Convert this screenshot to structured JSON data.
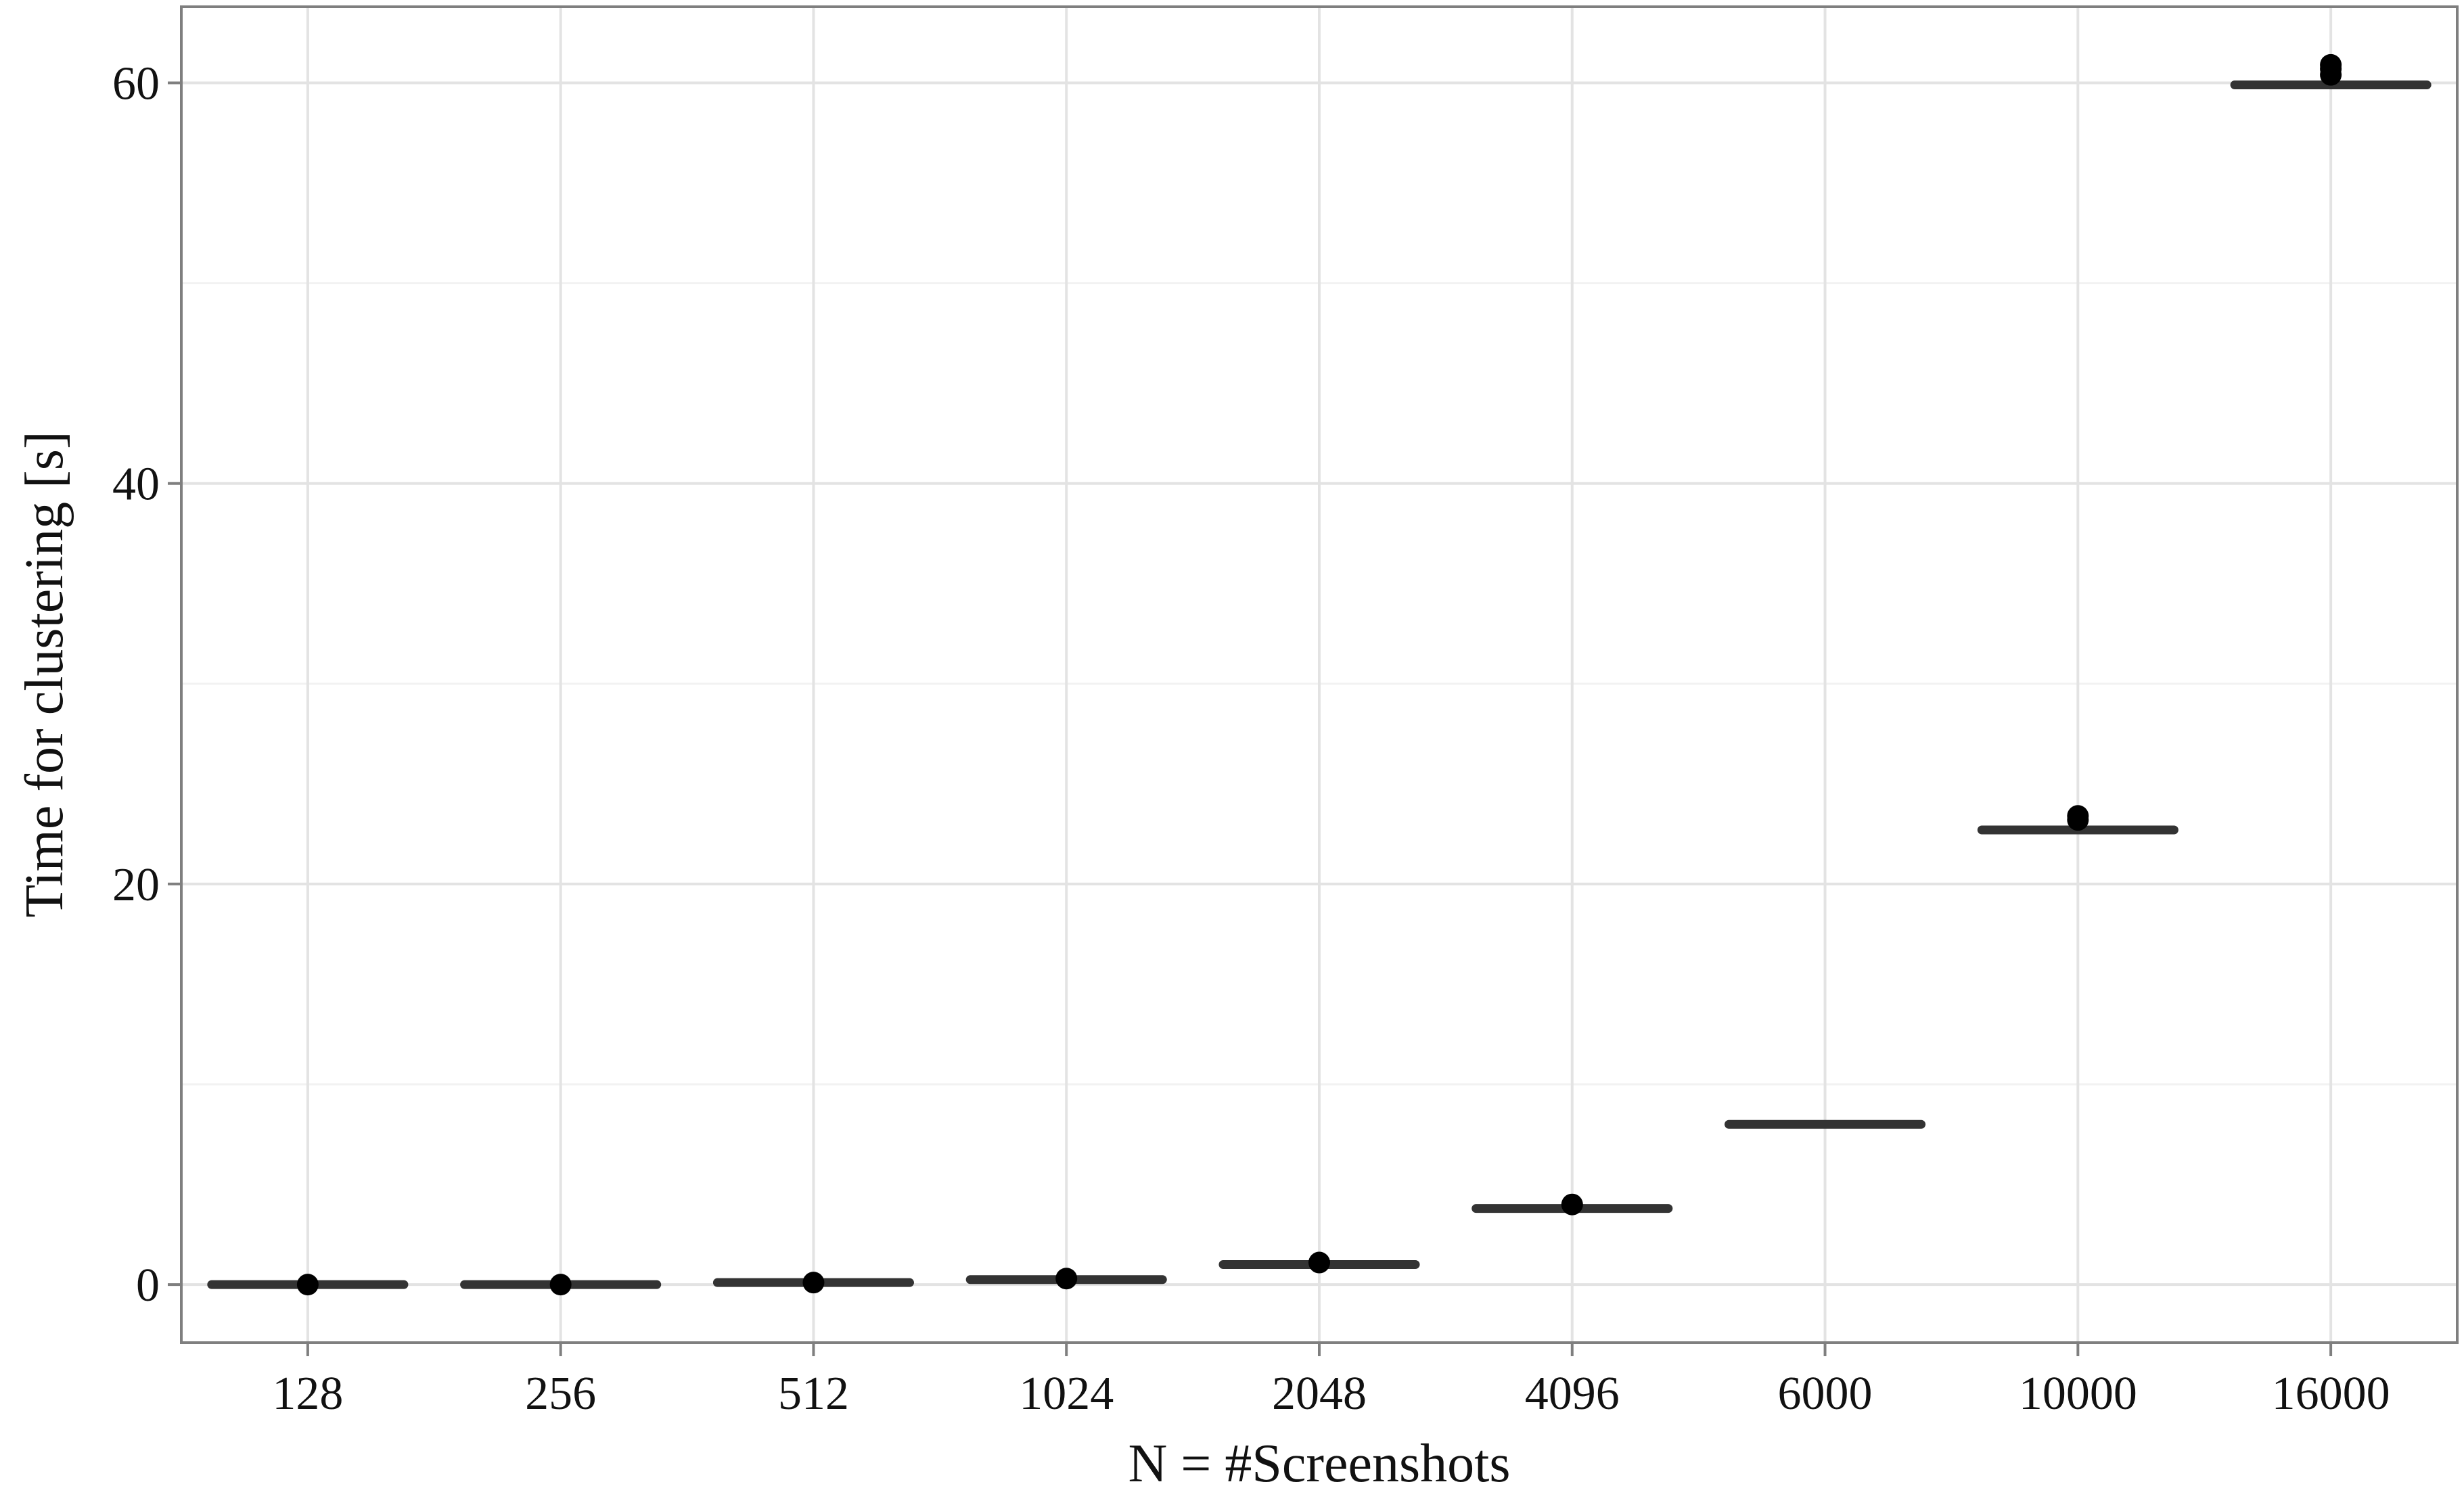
{
  "chart_data": {
    "type": "boxplot",
    "title": "",
    "xlabel": "N = #Screenshots",
    "ylabel": "Time for clustering [s]",
    "categories": [
      "128",
      "256",
      "512",
      "1024",
      "2048",
      "4096",
      "6000",
      "10000",
      "16000"
    ],
    "medians": [
      0.0,
      0.0,
      0.1,
      0.25,
      1.0,
      3.8,
      8.0,
      22.7,
      59.9
    ],
    "outliers": [
      [
        0.0
      ],
      [
        0.0
      ],
      [
        0.1
      ],
      [
        0.3
      ],
      [
        1.1
      ],
      [
        4.0
      ],
      [],
      [
        23.2,
        23.4
      ],
      [
        60.4,
        60.7,
        60.9
      ]
    ],
    "ylim": [
      -2.9,
      63.8
    ],
    "yticks": [
      0,
      20,
      40,
      60
    ],
    "y_minor_gridlines": [
      10,
      30,
      50
    ],
    "grid": true,
    "legend": "none"
  }
}
